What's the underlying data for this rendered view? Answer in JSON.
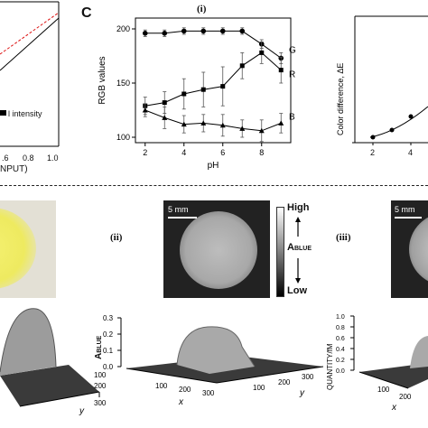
{
  "top": {
    "panel_b": {
      "legend_item": "l intensity",
      "x_label": "NPUT)",
      "x_ticks": [
        ".6",
        "0.8",
        "1.0"
      ]
    },
    "panel_c": {
      "letter": "C",
      "sub_i": "(i)",
      "chart_data": {
        "type": "line",
        "title": "",
        "xlabel": "pH",
        "ylabel": "RGB values",
        "x": [
          2,
          3,
          4,
          5,
          6,
          7,
          8,
          9
        ],
        "xlim": [
          1.5,
          9.5
        ],
        "ylim": [
          95,
          210
        ],
        "xticks": [
          2,
          4,
          6,
          8
        ],
        "yticks": [
          100,
          150,
          200
        ],
        "series": [
          {
            "name": "G",
            "marker": "circle",
            "values": [
              196,
              196,
              198,
              198,
              198,
              198,
              186,
              173
            ],
            "err": [
              3,
              3,
              3,
              3,
              3,
              3,
              4,
              5
            ]
          },
          {
            "name": "R",
            "marker": "square",
            "values": [
              129,
              132,
              140,
              144,
              147,
              166,
              178,
              162
            ],
            "err": [
              8,
              10,
              14,
              16,
              18,
              12,
              10,
              12
            ]
          },
          {
            "name": "B",
            "marker": "triangle",
            "values": [
              125,
              118,
              112,
              113,
              111,
              108,
              106,
              113
            ],
            "err": [
              6,
              10,
              8,
              8,
              10,
              8,
              10,
              9
            ]
          }
        ]
      }
    },
    "panel_c_delta": {
      "y_label": "Color difference, ΔE",
      "x_ticks": [
        "2",
        "4"
      ]
    }
  },
  "bottom": {
    "sub_ii": "(ii)",
    "sub_iii": "(iii)",
    "scale_label": "5 mm",
    "colorbar": {
      "high": "High",
      "low": "Low",
      "label_main": "A",
      "label_sub": "BLUE"
    },
    "plot_left": {
      "y_ticks": [],
      "x_axis": "y",
      "ticks": [
        "100",
        "200",
        "300"
      ]
    },
    "plot_mid": {
      "y_axis_main": "A",
      "y_axis_sub": "BLUE",
      "y_ticks": [
        "0.3",
        "0.2",
        "0.1",
        "0.0"
      ],
      "x_axis": "x",
      "x_ticks": [
        "100",
        "200",
        "300"
      ],
      "y_axis_depth": "y",
      "depth_ticks": [
        "100",
        "200",
        "300"
      ]
    },
    "plot_right": {
      "y_axis": "QUANTITY/fM",
      "y_ticks": [
        "1.0",
        "0.8",
        "0.6",
        "0.4",
        "0.2",
        "0.0"
      ],
      "x_axis": "x",
      "x_ticks": [
        "100",
        "200"
      ]
    }
  }
}
